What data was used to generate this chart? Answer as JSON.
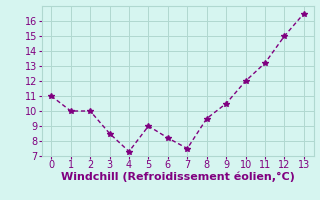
{
  "x": [
    0,
    1,
    2,
    3,
    4,
    5,
    6,
    7,
    8,
    9,
    10,
    11,
    12,
    13
  ],
  "y": [
    11,
    10,
    10,
    8.5,
    7.3,
    9,
    8.2,
    7.5,
    9.5,
    10.5,
    12,
    13.2,
    15,
    16.5
  ],
  "xlabel": "Windchill (Refroidissement éolien,°C)",
  "xlim": [
    -0.5,
    13.5
  ],
  "ylim": [
    7,
    17
  ],
  "yticks": [
    7,
    8,
    9,
    10,
    11,
    12,
    13,
    14,
    15,
    16
  ],
  "xticks": [
    0,
    1,
    2,
    3,
    4,
    5,
    6,
    7,
    8,
    9,
    10,
    11,
    12,
    13
  ],
  "line_color": "#800080",
  "marker": "*",
  "bg_color": "#d6f5f0",
  "grid_color": "#b0d8d0",
  "label_color": "#800080",
  "tick_fontsize": 7,
  "xlabel_fontsize": 8
}
